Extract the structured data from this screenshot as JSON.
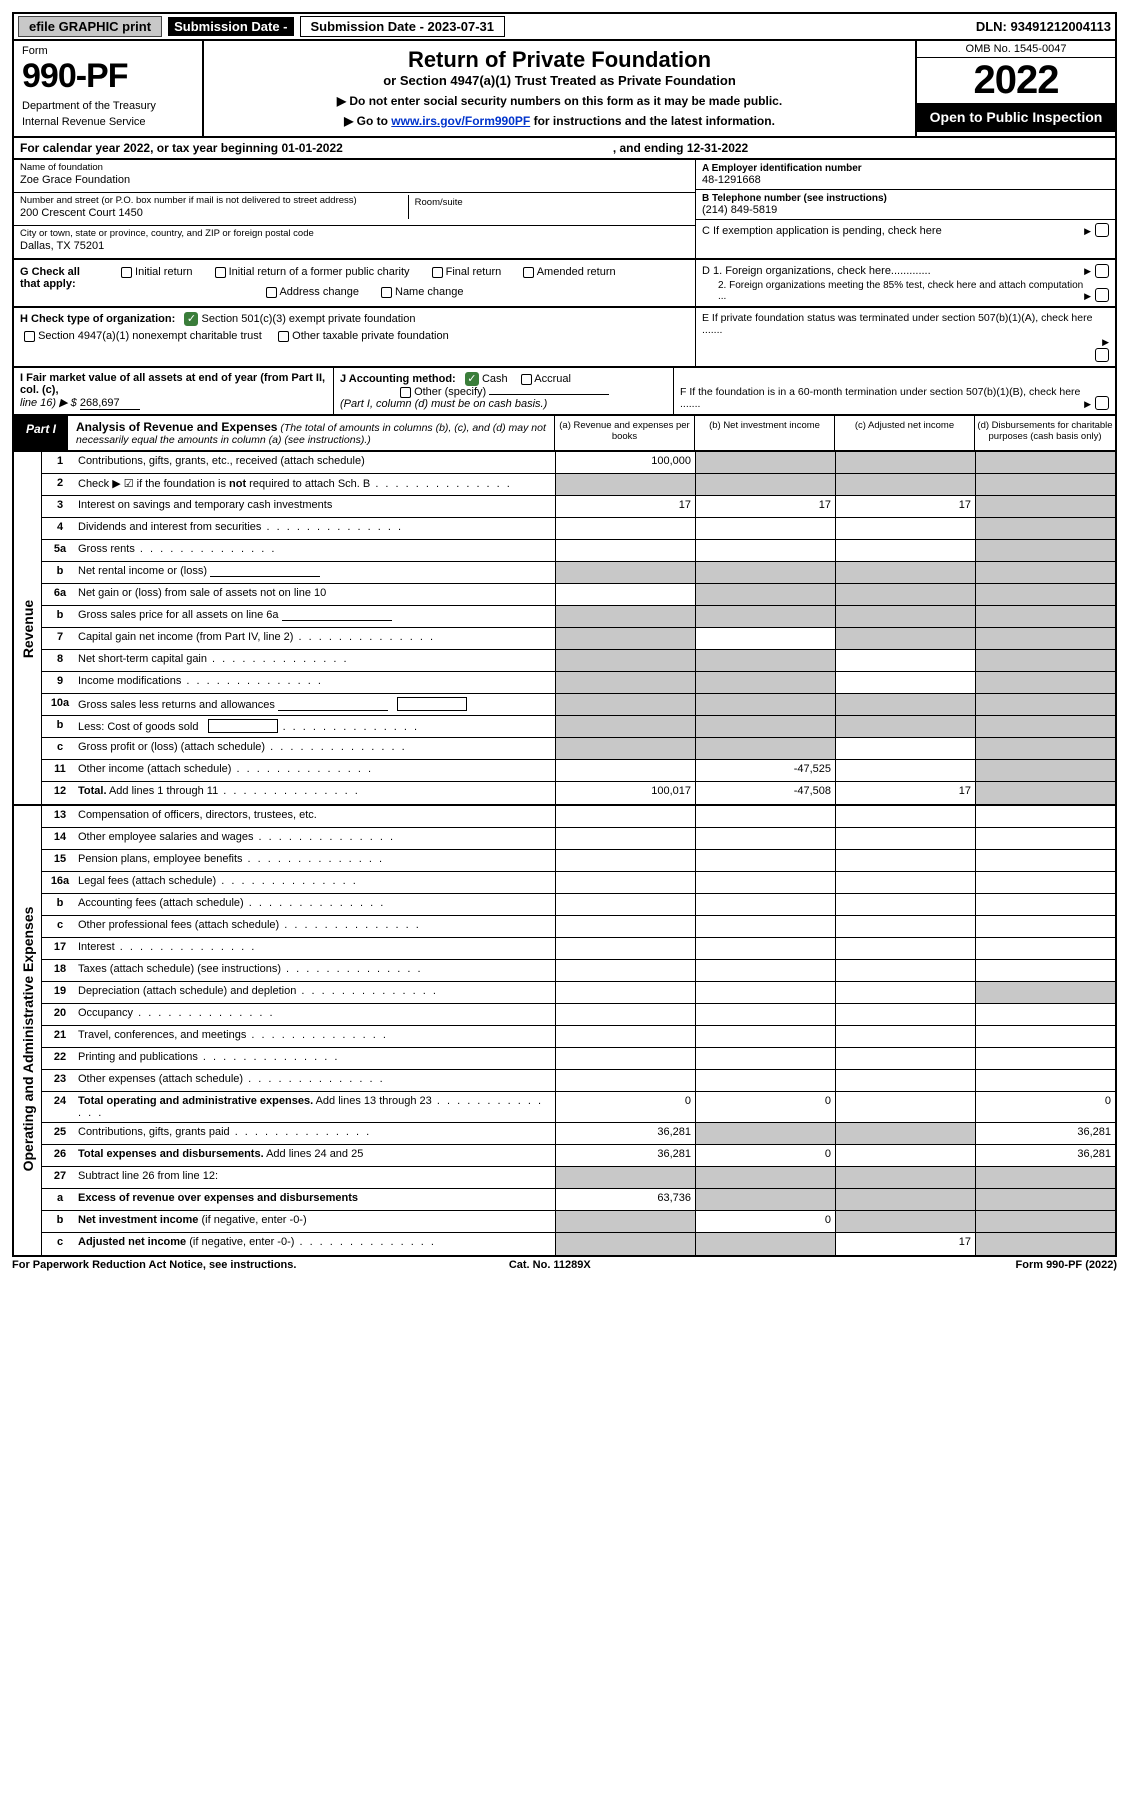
{
  "topbar": {
    "efile": "efile GRAPHIC print",
    "sub_label": "Submission Date - 2023-07-31",
    "dln": "DLN: 93491212004113"
  },
  "header": {
    "form_word": "Form",
    "form_no": "990-PF",
    "dept": "Department of the Treasury",
    "irs": "Internal Revenue Service",
    "title": "Return of Private Foundation",
    "subtitle": "or Section 4947(a)(1) Trust Treated as Private Foundation",
    "note1": "▶ Do not enter social security numbers on this form as it may be made public.",
    "note2_pre": "▶ Go to ",
    "note2_link": "www.irs.gov/Form990PF",
    "note2_post": " for instructions and the latest information.",
    "omb": "OMB No. 1545-0047",
    "year": "2022",
    "open": "Open to Public Inspection"
  },
  "cal": {
    "text": "For calendar year 2022, or tax year beginning 01-01-2022",
    "end": ", and ending 12-31-2022"
  },
  "id": {
    "name_lbl": "Name of foundation",
    "name": "Zoe Grace Foundation",
    "addr_lbl": "Number and street (or P.O. box number if mail is not delivered to street address)",
    "addr": "200 Crescent Court 1450",
    "room_lbl": "Room/suite",
    "city_lbl": "City or town, state or province, country, and ZIP or foreign postal code",
    "city": "Dallas, TX  75201",
    "ein_lbl": "A Employer identification number",
    "ein": "48-1291668",
    "tel_lbl": "B Telephone number (see instructions)",
    "tel": "(214) 849-5819",
    "c_lbl": "C If exemption application is pending, check here",
    "d1": "D 1. Foreign organizations, check here.............",
    "d2": "2. Foreign organizations meeting the 85% test, check here and attach computation ...",
    "e": "E  If private foundation status was terminated under section 507(b)(1)(A), check here .......",
    "f": "F  If the foundation is in a 60-month termination under section 507(b)(1)(B), check here .......",
    "g_lbl": "G Check all that apply:",
    "g1": "Initial return",
    "g2": "Initial return of a former public charity",
    "g3": "Final return",
    "g4": "Amended return",
    "g5": "Address change",
    "g6": "Name change",
    "h_lbl": "H Check type of organization:",
    "h1": "Section 501(c)(3) exempt private foundation",
    "h2": "Section 4947(a)(1) nonexempt charitable trust",
    "h3": "Other taxable private foundation",
    "i_lbl": "I Fair market value of all assets at end of year (from Part II, col. (c),",
    "i_line": "line 16) ▶ $",
    "i_val": "268,697",
    "j_lbl": "J Accounting method:",
    "j1": "Cash",
    "j2": "Accrual",
    "j3": "Other (specify)",
    "j_note": "(Part I, column (d) must be on cash basis.)"
  },
  "part1": {
    "tag": "Part I",
    "title": "Analysis of Revenue and Expenses",
    "sub": "(The total of amounts in columns (b), (c), and (d) may not necessarily equal the amounts in column (a) (see instructions).)",
    "col_a": "(a)  Revenue and expenses per books",
    "col_b": "(b)  Net investment income",
    "col_c": "(c)  Adjusted net income",
    "col_d": "(d)  Disbursements for charitable purposes (cash basis only)"
  },
  "side": {
    "rev": "Revenue",
    "exp": "Operating and Administrative Expenses"
  },
  "rows": [
    {
      "n": "1",
      "l": "Contributions, gifts, grants, etc., received (attach schedule)",
      "a": "100,000",
      "b": "",
      "c": "",
      "d": "",
      "ga": false,
      "gb": true,
      "gc": true,
      "gd": true
    },
    {
      "n": "2",
      "l": "Check ▶ ☑ if the foundation is <b>not</b> required to attach Sch. B",
      "a": "",
      "b": "",
      "c": "",
      "d": "",
      "ga": true,
      "gb": true,
      "gc": true,
      "gd": true,
      "dots": true
    },
    {
      "n": "3",
      "l": "Interest on savings and temporary cash investments",
      "a": "17",
      "b": "17",
      "c": "17",
      "d": "",
      "ga": false,
      "gb": false,
      "gc": false,
      "gd": true
    },
    {
      "n": "4",
      "l": "Dividends and interest from securities",
      "a": "",
      "b": "",
      "c": "",
      "d": "",
      "dots": true,
      "gd": true
    },
    {
      "n": "5a",
      "l": "Gross rents",
      "a": "",
      "b": "",
      "c": "",
      "d": "",
      "dots": true,
      "gd": true
    },
    {
      "n": "b",
      "l": "Net rental income or (loss)",
      "a": "",
      "b": "",
      "c": "",
      "d": "",
      "ga": true,
      "gb": true,
      "gc": true,
      "gd": true,
      "inline": true
    },
    {
      "n": "6a",
      "l": "Net gain or (loss) from sale of assets not on line 10",
      "a": "",
      "b": "",
      "c": "",
      "d": "",
      "gb": true,
      "gc": true,
      "gd": true
    },
    {
      "n": "b",
      "l": "Gross sales price for all assets on line 6a",
      "a": "",
      "b": "",
      "c": "",
      "d": "",
      "ga": true,
      "gb": true,
      "gc": true,
      "gd": true,
      "inline": true
    },
    {
      "n": "7",
      "l": "Capital gain net income (from Part IV, line 2)",
      "a": "",
      "b": "",
      "c": "",
      "d": "",
      "ga": true,
      "gc": true,
      "gd": true,
      "dots": true
    },
    {
      "n": "8",
      "l": "Net short-term capital gain",
      "a": "",
      "b": "",
      "c": "",
      "d": "",
      "ga": true,
      "gb": true,
      "gd": true,
      "dots": true
    },
    {
      "n": "9",
      "l": "Income modifications",
      "a": "",
      "b": "",
      "c": "",
      "d": "",
      "ga": true,
      "gb": true,
      "gd": true,
      "dots": true
    },
    {
      "n": "10a",
      "l": "Gross sales less returns and allowances",
      "a": "",
      "b": "",
      "c": "",
      "d": "",
      "ga": true,
      "gb": true,
      "gc": true,
      "gd": true,
      "inline": true,
      "box": true
    },
    {
      "n": "b",
      "l": "Less: Cost of goods sold",
      "a": "",
      "b": "",
      "c": "",
      "d": "",
      "ga": true,
      "gb": true,
      "gc": true,
      "gd": true,
      "dots": true,
      "box": true
    },
    {
      "n": "c",
      "l": "Gross profit or (loss) (attach schedule)",
      "a": "",
      "b": "",
      "c": "",
      "d": "",
      "ga": true,
      "gb": true,
      "gd": true,
      "dots": true
    },
    {
      "n": "11",
      "l": "Other income (attach schedule)",
      "a": "",
      "b": "-47,525",
      "c": "",
      "d": "",
      "dots": true,
      "gd": true
    },
    {
      "n": "12",
      "l": "<b>Total.</b> Add lines 1 through 11",
      "a": "100,017",
      "b": "-47,508",
      "c": "17",
      "d": "",
      "dots": true,
      "gd": true
    }
  ],
  "erows": [
    {
      "n": "13",
      "l": "Compensation of officers, directors, trustees, etc.",
      "a": "",
      "b": "",
      "c": "",
      "d": ""
    },
    {
      "n": "14",
      "l": "Other employee salaries and wages",
      "a": "",
      "b": "",
      "c": "",
      "d": "",
      "dots": true
    },
    {
      "n": "15",
      "l": "Pension plans, employee benefits",
      "a": "",
      "b": "",
      "c": "",
      "d": "",
      "dots": true
    },
    {
      "n": "16a",
      "l": "Legal fees (attach schedule)",
      "a": "",
      "b": "",
      "c": "",
      "d": "",
      "dots": true
    },
    {
      "n": "b",
      "l": "Accounting fees (attach schedule)",
      "a": "",
      "b": "",
      "c": "",
      "d": "",
      "dots": true
    },
    {
      "n": "c",
      "l": "Other professional fees (attach schedule)",
      "a": "",
      "b": "",
      "c": "",
      "d": "",
      "dots": true
    },
    {
      "n": "17",
      "l": "Interest",
      "a": "",
      "b": "",
      "c": "",
      "d": "",
      "dots": true
    },
    {
      "n": "18",
      "l": "Taxes (attach schedule) (see instructions)",
      "a": "",
      "b": "",
      "c": "",
      "d": "",
      "dots": true
    },
    {
      "n": "19",
      "l": "Depreciation (attach schedule) and depletion",
      "a": "",
      "b": "",
      "c": "",
      "d": "",
      "gd": true,
      "dots": true
    },
    {
      "n": "20",
      "l": "Occupancy",
      "a": "",
      "b": "",
      "c": "",
      "d": "",
      "dots": true
    },
    {
      "n": "21",
      "l": "Travel, conferences, and meetings",
      "a": "",
      "b": "",
      "c": "",
      "d": "",
      "dots": true
    },
    {
      "n": "22",
      "l": "Printing and publications",
      "a": "",
      "b": "",
      "c": "",
      "d": "",
      "dots": true
    },
    {
      "n": "23",
      "l": "Other expenses (attach schedule)",
      "a": "",
      "b": "",
      "c": "",
      "d": "",
      "dots": true
    },
    {
      "n": "24",
      "l": "<b>Total operating and administrative expenses.</b> Add lines 13 through 23",
      "a": "0",
      "b": "0",
      "c": "",
      "d": "0",
      "dots": true
    },
    {
      "n": "25",
      "l": "Contributions, gifts, grants paid",
      "a": "36,281",
      "b": "",
      "c": "",
      "d": "36,281",
      "gb": true,
      "gc": true,
      "dots": true
    },
    {
      "n": "26",
      "l": "<b>Total expenses and disbursements.</b> Add lines 24 and 25",
      "a": "36,281",
      "b": "0",
      "c": "",
      "d": "36,281"
    },
    {
      "n": "27",
      "l": "Subtract line 26 from line 12:",
      "a": "",
      "b": "",
      "c": "",
      "d": "",
      "ga": true,
      "gb": true,
      "gc": true,
      "gd": true
    },
    {
      "n": "a",
      "l": "<b>Excess of revenue over expenses and disbursements</b>",
      "a": "63,736",
      "b": "",
      "c": "",
      "d": "",
      "gb": true,
      "gc": true,
      "gd": true
    },
    {
      "n": "b",
      "l": "<b>Net investment income</b> (if negative, enter -0-)",
      "a": "",
      "b": "0",
      "c": "",
      "d": "",
      "ga": true,
      "gc": true,
      "gd": true
    },
    {
      "n": "c",
      "l": "<b>Adjusted net income</b> (if negative, enter -0-)",
      "a": "",
      "b": "",
      "c": "17",
      "d": "",
      "ga": true,
      "gb": true,
      "gd": true,
      "dots": true
    }
  ],
  "footer": {
    "left": "For Paperwork Reduction Act Notice, see instructions.",
    "mid": "Cat. No. 11289X",
    "right": "Form 990-PF (2022)"
  },
  "colors": {
    "grey": "#c8c8c8",
    "black": "#000000",
    "green": "#3a7d3a",
    "link": "#0033cc"
  }
}
